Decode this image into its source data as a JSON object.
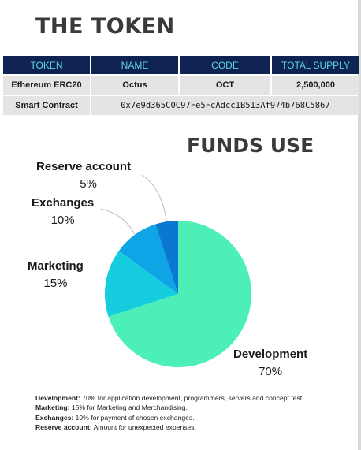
{
  "token": {
    "title": "THE TOKEN",
    "headers": [
      "TOKEN",
      "NAME",
      "CODE",
      "TOTAL SUPPLY"
    ],
    "row": {
      "token": "Ethereum ERC20",
      "name": "Octus",
      "code": "OCT",
      "total_supply": "2,500,000"
    },
    "contract": {
      "label": "Smart Contract",
      "address": "0x7e9d365C0C97Fe5FcAdcc1B513Af974b768C5867"
    }
  },
  "funds": {
    "title": "FUNDS USE"
  },
  "chart_data": {
    "type": "pie",
    "title": "FUNDS USE",
    "slices": [
      {
        "name": "Development",
        "value": 70,
        "label": "70%",
        "color": "#4cf0b6"
      },
      {
        "name": "Marketing",
        "value": 15,
        "label": "15%",
        "color": "#16cde0"
      },
      {
        "name": "Exchanges",
        "value": 10,
        "label": "10%",
        "color": "#0ea4e6"
      },
      {
        "name": "Reserve account",
        "value": 5,
        "label": "5%",
        "color": "#0a77d1"
      }
    ]
  },
  "notes": [
    {
      "term": "Development:",
      "text": " 70% for application development, programmers, servers and concept test."
    },
    {
      "term": "Marketing:",
      "text": " 15% for Marketing and Merchandising."
    },
    {
      "term": "Exchanges:",
      "text": " 10% for payment of chosen exchanges."
    },
    {
      "term": "Reserve account:",
      "text": " Amount for unexpected expenses."
    }
  ]
}
